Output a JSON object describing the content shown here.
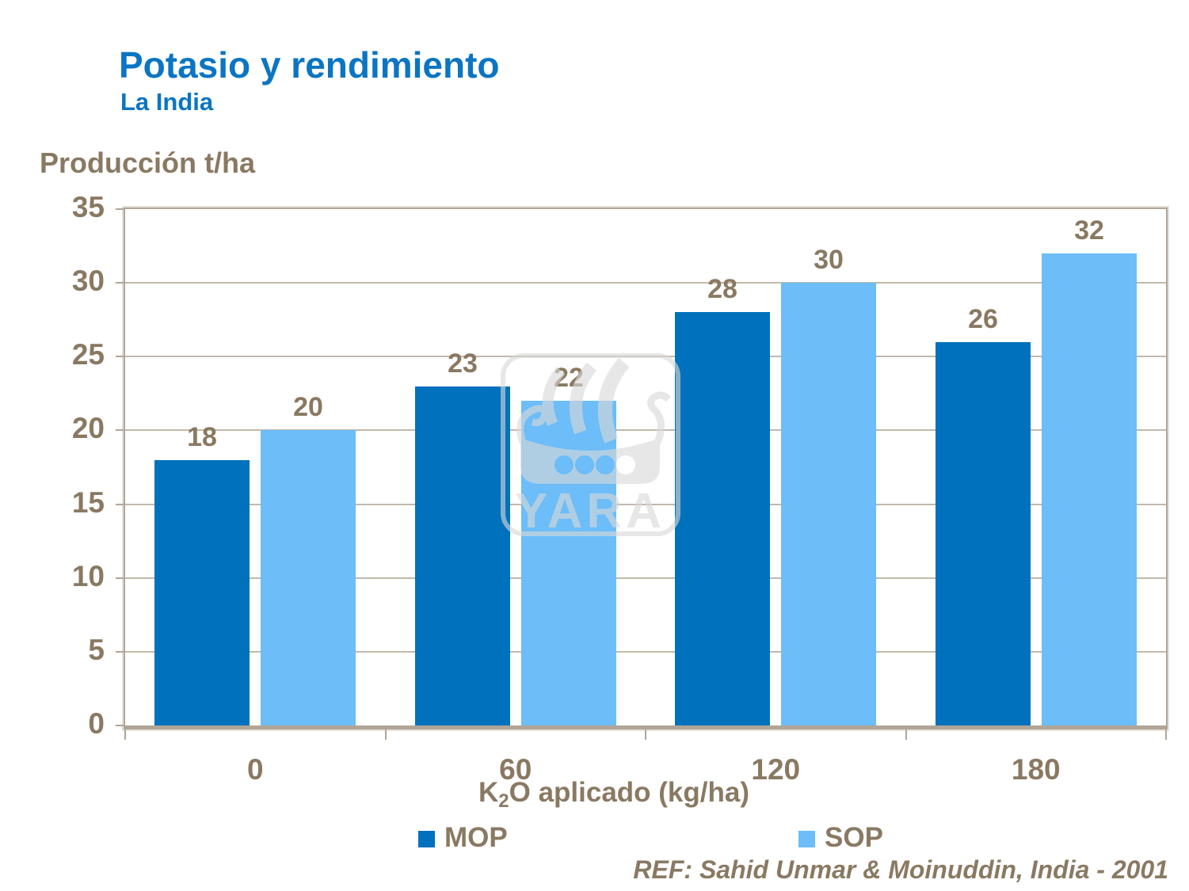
{
  "slide": {
    "title": "Potasio y rendimiento",
    "subtitle": "La India",
    "reference": "REF: Sahid Unmar & Moinuddin, India - 2001",
    "watermark": "YARA"
  },
  "chart_data": {
    "type": "bar",
    "title": "Potasio y rendimiento",
    "subtitle": "La India",
    "ylabel": "Producción t/ha",
    "xlabel": "K2O aplicado (kg/ha)",
    "xlabel_parts": {
      "k": "K",
      "sub": "2",
      "rest": "O aplicado (kg/ha)"
    },
    "categories": [
      "0",
      "60",
      "120",
      "180"
    ],
    "series": [
      {
        "name": "MOP",
        "color": "#0071BC",
        "values": [
          18,
          23,
          28,
          26
        ]
      },
      {
        "name": "SOP",
        "color": "#6CBDF8",
        "values": [
          20,
          22,
          30,
          32
        ]
      }
    ],
    "ylim": [
      0,
      35
    ],
    "yticks": [
      0,
      5,
      10,
      15,
      20,
      25,
      30,
      35
    ],
    "grid": true,
    "legend_position": "bottom",
    "data_labels": true
  },
  "colors": {
    "title_blue": "#0B75C3",
    "text_brown": "#8A7962",
    "axis_taupe": "#B1A597",
    "gridline_taupe": "#C2B8AB",
    "mop_bar": "#0071BC",
    "sop_bar": "#6CBDF8",
    "watermark_gray": "#D9D9D9",
    "background": "#FFFFFF"
  }
}
